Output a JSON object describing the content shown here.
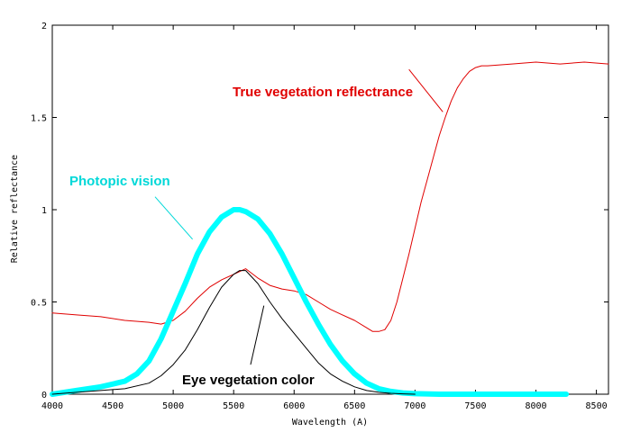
{
  "chart_data": {
    "type": "line",
    "title": "",
    "xlabel": "Wavelength (A)",
    "ylabel": "Relative reflectance",
    "xlim": [
      4000,
      8600
    ],
    "ylim": [
      0,
      2
    ],
    "x_ticks": [
      "4000",
      "4500",
      "5000",
      "5500",
      "6000",
      "6500",
      "7000",
      "7500",
      "8000",
      "8500"
    ],
    "y_ticks": [
      "0",
      "0.5",
      "1",
      "1.5",
      "2"
    ],
    "grid": false,
    "legend": "none",
    "series": [
      {
        "key": "true_vegetation",
        "color": "#e00000",
        "x": [
          4000,
          4200,
          4400,
          4600,
          4800,
          4900,
          5000,
          5100,
          5200,
          5300,
          5400,
          5500,
          5600,
          5700,
          5800,
          5900,
          6000,
          6100,
          6200,
          6300,
          6400,
          6500,
          6600,
          6650,
          6700,
          6750,
          6800,
          6850,
          6900,
          6950,
          7000,
          7050,
          7100,
          7150,
          7200,
          7250,
          7300,
          7350,
          7400,
          7450,
          7500,
          7550,
          7600,
          7800,
          8000,
          8200,
          8400,
          8600
        ],
        "y": [
          0.44,
          0.43,
          0.42,
          0.4,
          0.39,
          0.38,
          0.4,
          0.45,
          0.52,
          0.58,
          0.62,
          0.65,
          0.68,
          0.63,
          0.59,
          0.57,
          0.56,
          0.54,
          0.5,
          0.46,
          0.43,
          0.4,
          0.36,
          0.34,
          0.34,
          0.35,
          0.4,
          0.5,
          0.63,
          0.76,
          0.9,
          1.04,
          1.16,
          1.28,
          1.4,
          1.5,
          1.59,
          1.66,
          1.71,
          1.75,
          1.77,
          1.78,
          1.78,
          1.79,
          1.8,
          1.79,
          1.8,
          1.79
        ]
      },
      {
        "key": "photopic_vision",
        "color": "#00ffff",
        "x": [
          4000,
          4200,
          4400,
          4600,
          4700,
          4800,
          4900,
          5000,
          5100,
          5200,
          5300,
          5400,
          5500,
          5550,
          5600,
          5700,
          5800,
          5900,
          6000,
          6100,
          6200,
          6300,
          6400,
          6500,
          6600,
          6700,
          6800,
          6900,
          7000,
          7200,
          7500,
          7600,
          7650,
          8000,
          8250
        ],
        "y": [
          0.0,
          0.02,
          0.04,
          0.07,
          0.11,
          0.18,
          0.3,
          0.45,
          0.6,
          0.76,
          0.88,
          0.96,
          1.0,
          1.0,
          0.99,
          0.95,
          0.87,
          0.76,
          0.63,
          0.5,
          0.38,
          0.27,
          0.18,
          0.11,
          0.06,
          0.03,
          0.015,
          0.007,
          0.003,
          0.0,
          0.0,
          0.0,
          0.0,
          0.0,
          0.0
        ]
      },
      {
        "key": "eye_vegetation",
        "color": "#000000",
        "x": [
          4000,
          4200,
          4400,
          4600,
          4800,
          4900,
          5000,
          5100,
          5200,
          5300,
          5400,
          5500,
          5550,
          5600,
          5700,
          5800,
          5900,
          6000,
          6100,
          6200,
          6300,
          6400,
          6500,
          6600,
          6700,
          6800,
          6900,
          7000
        ],
        "y": [
          0.0,
          0.01,
          0.02,
          0.03,
          0.06,
          0.1,
          0.16,
          0.24,
          0.35,
          0.47,
          0.58,
          0.65,
          0.67,
          0.67,
          0.6,
          0.5,
          0.41,
          0.33,
          0.25,
          0.17,
          0.11,
          0.07,
          0.04,
          0.02,
          0.01,
          0.005,
          0.002,
          0.0
        ]
      }
    ],
    "annotations": [
      {
        "key": "true_vegetation",
        "text": "True vegetation reflectrance",
        "color": "#e00000",
        "pointer_from": [
          7230,
          1.53
        ],
        "pointer_to": [
          6950,
          1.76
        ]
      },
      {
        "key": "photopic_vision",
        "text": "Photopic vision",
        "color": "#00d8d8",
        "pointer_from": [
          5160,
          0.84
        ],
        "pointer_to": [
          4850,
          1.07
        ]
      },
      {
        "key": "eye_vegetation",
        "text": "Eye vegetation color",
        "color": "#000000",
        "pointer_from": [
          5750,
          0.48
        ],
        "pointer_to": [
          5640,
          0.16
        ]
      }
    ]
  }
}
